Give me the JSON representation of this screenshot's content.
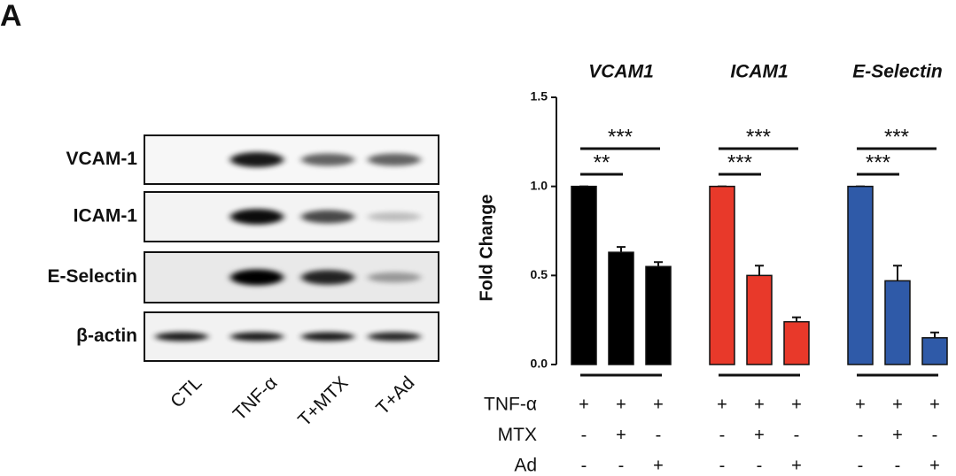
{
  "panel_label": "A",
  "blot": {
    "rows": [
      "VCAM-1",
      "ICAM-1",
      "E-Selectin",
      "β-actin"
    ],
    "lanes": [
      "CTL",
      "TNF-α",
      "T+MTX",
      "T+Ad"
    ]
  },
  "chart_data": {
    "type": "bar",
    "ylabel": "Fold Change",
    "ylim": [
      0,
      1.5
    ],
    "yticks": [
      {
        "value": 0,
        "label": "0.0"
      },
      {
        "value": 0.5,
        "label": "0.5"
      },
      {
        "value": 1,
        "label": "1.0"
      },
      {
        "value": 1.5,
        "label": "1.5"
      }
    ],
    "series": [
      {
        "name": "VCAM1",
        "color": "#000000",
        "values": [
          1.0,
          0.63,
          0.55
        ],
        "errors": [
          0,
          0.03,
          0.025
        ],
        "significance": [
          "***",
          "**"
        ]
      },
      {
        "name": "ICAM1",
        "color": "#e8392a",
        "values": [
          1.0,
          0.5,
          0.24
        ],
        "errors": [
          0,
          0.055,
          0.025
        ],
        "significance": [
          "***",
          "***"
        ]
      },
      {
        "name": "E-Selectin",
        "color": "#2f5aa8",
        "values": [
          1.0,
          0.47,
          0.15
        ],
        "errors": [
          0,
          0.085,
          0.03
        ],
        "significance": [
          "***",
          "***"
        ]
      }
    ],
    "treatments": [
      {
        "name": "TNF-α",
        "signs": [
          "+",
          "+",
          "+"
        ]
      },
      {
        "name": "MTX",
        "signs": [
          "-",
          "+",
          "-"
        ]
      },
      {
        "name": "Ad",
        "signs": [
          "-",
          "-",
          "+"
        ]
      }
    ]
  }
}
